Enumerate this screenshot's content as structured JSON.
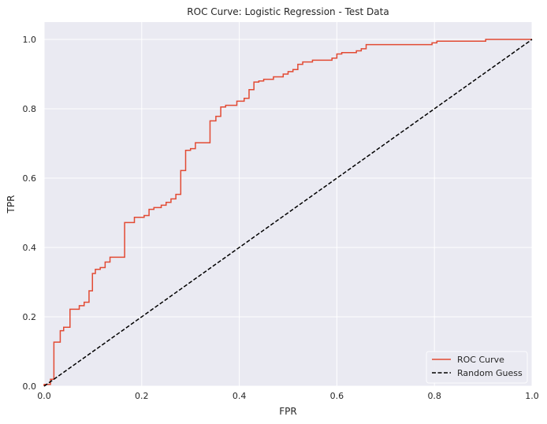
{
  "chart_data": {
    "type": "line",
    "title": "ROC Curve: Logistic Regression - Test Data",
    "xlabel": "FPR",
    "ylabel": "TPR",
    "xlim": [
      0,
      1
    ],
    "ylim": [
      0,
      1.05
    ],
    "x_ticks": [
      "0.0",
      "0.2",
      "0.4",
      "0.6",
      "0.8",
      "1.0"
    ],
    "y_ticks": [
      "0.0",
      "0.2",
      "0.4",
      "0.6",
      "0.8",
      "1.0"
    ],
    "grid": true,
    "legend_position": "bottom-right",
    "colors": {
      "background": "#eaeaf2",
      "grid": "#ffffff",
      "roc": "#e24a33",
      "random": "#000000"
    },
    "series": [
      {
        "name": "ROC Curve",
        "style": "solid-step",
        "x": [
          0.0,
          0.0,
          0.013,
          0.013,
          0.02,
          0.02,
          0.033,
          0.033,
          0.04,
          0.04,
          0.053,
          0.053,
          0.072,
          0.072,
          0.082,
          0.082,
          0.092,
          0.092,
          0.099,
          0.099,
          0.105,
          0.105,
          0.115,
          0.115,
          0.125,
          0.125,
          0.135,
          0.135,
          0.165,
          0.165,
          0.185,
          0.185,
          0.205,
          0.205,
          0.215,
          0.215,
          0.225,
          0.225,
          0.24,
          0.24,
          0.25,
          0.25,
          0.26,
          0.26,
          0.27,
          0.27,
          0.28,
          0.28,
          0.29,
          0.29,
          0.3,
          0.3,
          0.31,
          0.31,
          0.34,
          0.34,
          0.352,
          0.352,
          0.362,
          0.362,
          0.372,
          0.372,
          0.395,
          0.395,
          0.41,
          0.41,
          0.42,
          0.42,
          0.43,
          0.43,
          0.44,
          0.44,
          0.45,
          0.45,
          0.47,
          0.47,
          0.49,
          0.49,
          0.5,
          0.5,
          0.51,
          0.51,
          0.52,
          0.52,
          0.53,
          0.53,
          0.55,
          0.55,
          0.59,
          0.59,
          0.6,
          0.6,
          0.61,
          0.61,
          0.64,
          0.64,
          0.65,
          0.65,
          0.66,
          0.66,
          0.795,
          0.795,
          0.805,
          0.805,
          0.905,
          0.905,
          1.0
        ],
        "y": [
          0.0,
          0.005,
          0.005,
          0.02,
          0.02,
          0.127,
          0.127,
          0.16,
          0.16,
          0.17,
          0.17,
          0.222,
          0.222,
          0.232,
          0.232,
          0.242,
          0.242,
          0.275,
          0.275,
          0.325,
          0.325,
          0.337,
          0.337,
          0.342,
          0.342,
          0.358,
          0.358,
          0.372,
          0.372,
          0.472,
          0.472,
          0.487,
          0.487,
          0.492,
          0.492,
          0.51,
          0.51,
          0.515,
          0.515,
          0.522,
          0.522,
          0.53,
          0.53,
          0.54,
          0.54,
          0.553,
          0.553,
          0.622,
          0.622,
          0.68,
          0.68,
          0.685,
          0.685,
          0.702,
          0.702,
          0.765,
          0.765,
          0.778,
          0.778,
          0.805,
          0.805,
          0.81,
          0.81,
          0.822,
          0.822,
          0.83,
          0.83,
          0.855,
          0.855,
          0.877,
          0.877,
          0.88,
          0.88,
          0.885,
          0.885,
          0.892,
          0.892,
          0.9,
          0.9,
          0.907,
          0.907,
          0.913,
          0.913,
          0.928,
          0.928,
          0.935,
          0.935,
          0.94,
          0.94,
          0.946,
          0.946,
          0.958,
          0.958,
          0.962,
          0.962,
          0.967,
          0.967,
          0.973,
          0.973,
          0.985,
          0.985,
          0.99,
          0.99,
          0.995,
          0.995,
          1.0,
          1.0
        ]
      },
      {
        "name": "Random Guess",
        "style": "dashed",
        "x": [
          0,
          1
        ],
        "y": [
          0,
          1
        ]
      }
    ]
  }
}
